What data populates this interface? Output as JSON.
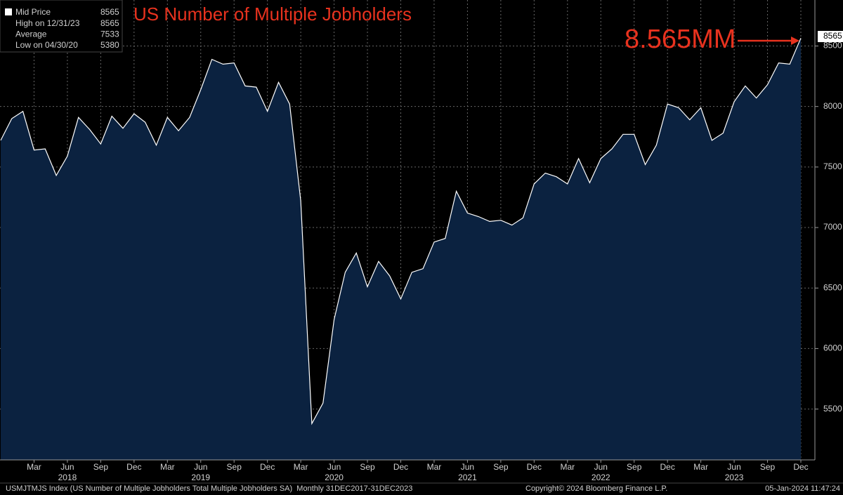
{
  "chart_data": {
    "type": "area",
    "title": "US Number of Multiple Jobholders",
    "annotation": "8.565MM",
    "categories": [
      null,
      null,
      null,
      "Mar",
      null,
      null,
      "Jun",
      null,
      null,
      "Sep",
      null,
      null,
      "Dec",
      null,
      null,
      "Mar",
      null,
      null,
      "Jun",
      null,
      null,
      "Sep",
      null,
      null,
      "Dec",
      null,
      null,
      "Mar",
      null,
      null,
      "Jun",
      null,
      null,
      "Sep",
      null,
      null,
      "Dec",
      null,
      null,
      "Mar",
      null,
      null,
      "Jun",
      null,
      null,
      "Sep",
      null,
      null,
      "Dec",
      null,
      null,
      "Mar",
      null,
      null,
      "Jun",
      null,
      null,
      "Sep",
      null,
      null,
      "Dec",
      null,
      null,
      "Mar",
      null,
      null,
      "Jun",
      null,
      null,
      "Sep",
      null,
      null,
      "Dec"
    ],
    "year_labels": [
      "2018",
      "2019",
      "2020",
      "2021",
      "2022",
      "2023"
    ],
    "series": [
      {
        "name": "Mid Price",
        "color": "#ffffff",
        "fill": "#0b2240",
        "values": [
          7720,
          7900,
          7960,
          7640,
          7650,
          7430,
          7590,
          7910,
          7810,
          7690,
          7920,
          7820,
          7940,
          7870,
          7680,
          7910,
          7800,
          7910,
          8140,
          8390,
          8350,
          8360,
          8170,
          8160,
          7960,
          8200,
          8020,
          7220,
          5380,
          5550,
          6240,
          6630,
          6790,
          6510,
          6720,
          6600,
          6410,
          6630,
          6660,
          6880,
          6910,
          7300,
          7120,
          7090,
          7050,
          7060,
          7020,
          7080,
          7360,
          7450,
          7420,
          7360,
          7570,
          7370,
          7570,
          7650,
          7770,
          7770,
          7520,
          7680,
          8020,
          7990,
          7890,
          7990,
          7720,
          7780,
          8040,
          8170,
          8070,
          8180,
          8360,
          8350,
          8565
        ]
      }
    ],
    "stats": [
      {
        "label": "High on 12/31/23",
        "value": 8565
      },
      {
        "label": "Average",
        "value": 7533
      },
      {
        "label": "Low on 04/30/20",
        "value": 5380
      }
    ],
    "ylim": [
      5080,
      8880
    ],
    "yticks": [
      5500,
      6000,
      6500,
      7000,
      7500,
      8000,
      8500
    ],
    "grid": true,
    "footer": {
      "left": "USMJTMJS Index (US Number of Multiple Jobholders Total Multiple Jobholders SA)  Monthly 31DEC2017-31DEC2023",
      "center": "Copyright© 2024 Bloomberg Finance L.P.",
      "right": "05-Jan-2024 11:47:24"
    }
  }
}
